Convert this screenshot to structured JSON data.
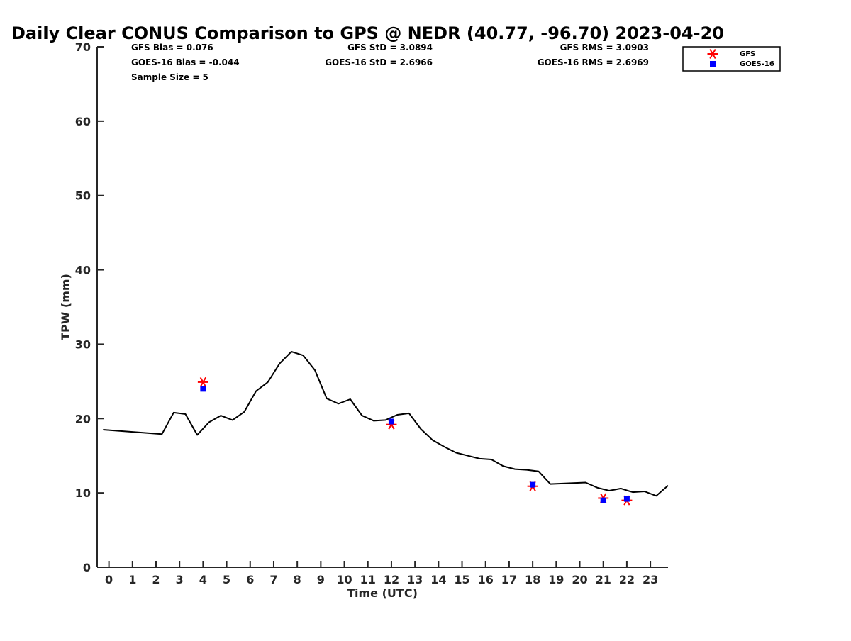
{
  "chart_data": {
    "type": "line",
    "title": "Daily Clear CONUS Comparison to GPS @ NEDR (40.77, -96.70) 2023-04-20",
    "xlabel": "Time (UTC)",
    "ylabel": "TPW (mm)",
    "xlim": [
      -0.5,
      23.75
    ],
    "ylim": [
      0,
      70
    ],
    "xticks": [
      0,
      1,
      2,
      3,
      4,
      5,
      6,
      7,
      8,
      9,
      10,
      11,
      12,
      13,
      14,
      15,
      16,
      17,
      18,
      19,
      20,
      21,
      22,
      23
    ],
    "yticks": [
      0,
      10,
      20,
      30,
      40,
      50,
      60,
      70
    ],
    "grid": false,
    "legend_position": "top-right",
    "stats": {
      "gfs_bias": "GFS Bias = 0.076",
      "goes_bias": "GOES-16 Bias = -0.044",
      "sample_size": "Sample Size = 5",
      "gfs_std": "GFS StD = 3.0894",
      "goes_std": "GOES-16 StD = 2.6966",
      "gfs_rms": "GFS RMS = 3.0903",
      "goes_rms": "GOES-16 RMS = 2.6969"
    },
    "series": [
      {
        "type": "line",
        "color": "#000000",
        "points": [
          [
            -0.25,
            18.5
          ],
          [
            2.25,
            17.9
          ],
          [
            2.75,
            20.8
          ],
          [
            3.25,
            20.6
          ],
          [
            3.75,
            17.8
          ],
          [
            4.25,
            19.5
          ],
          [
            4.75,
            20.4
          ],
          [
            5.25,
            19.8
          ],
          [
            5.75,
            20.9
          ],
          [
            6.25,
            23.7
          ],
          [
            6.75,
            24.9
          ],
          [
            7.25,
            27.4
          ],
          [
            7.75,
            29.0
          ],
          [
            8.25,
            28.5
          ],
          [
            8.75,
            26.5
          ],
          [
            9.25,
            22.7
          ],
          [
            9.75,
            22.0
          ],
          [
            10.25,
            22.6
          ],
          [
            10.75,
            20.4
          ],
          [
            11.25,
            19.7
          ],
          [
            11.75,
            19.8
          ],
          [
            12.25,
            20.5
          ],
          [
            12.75,
            20.7
          ],
          [
            13.25,
            18.6
          ],
          [
            13.75,
            17.1
          ],
          [
            14.25,
            16.2
          ],
          [
            14.75,
            15.4
          ],
          [
            15.25,
            15.0
          ],
          [
            15.75,
            14.6
          ],
          [
            16.25,
            14.5
          ],
          [
            16.75,
            13.6
          ],
          [
            17.25,
            13.2
          ],
          [
            17.75,
            13.1
          ],
          [
            18.25,
            12.9
          ],
          [
            18.75,
            11.2
          ],
          [
            20.25,
            11.4
          ],
          [
            20.75,
            10.7
          ],
          [
            21.25,
            10.3
          ],
          [
            21.75,
            10.6
          ],
          [
            22.25,
            10.1
          ],
          [
            22.75,
            10.2
          ],
          [
            23.25,
            9.6
          ],
          [
            23.75,
            11.0
          ]
        ]
      },
      {
        "name": "GFS",
        "type": "scatter",
        "marker": "asterisk",
        "color": "#ff0000",
        "points": [
          [
            4,
            24.9
          ],
          [
            12,
            19.2
          ],
          [
            18,
            10.9
          ],
          [
            21,
            9.3
          ],
          [
            22,
            9.0
          ]
        ]
      },
      {
        "name": "GOES-16",
        "type": "scatter",
        "marker": "square",
        "color": "#0000ff",
        "points": [
          [
            4,
            24.0
          ],
          [
            12,
            19.6
          ],
          [
            18,
            11.1
          ],
          [
            21,
            9.0
          ],
          [
            22,
            9.2
          ]
        ]
      }
    ]
  }
}
